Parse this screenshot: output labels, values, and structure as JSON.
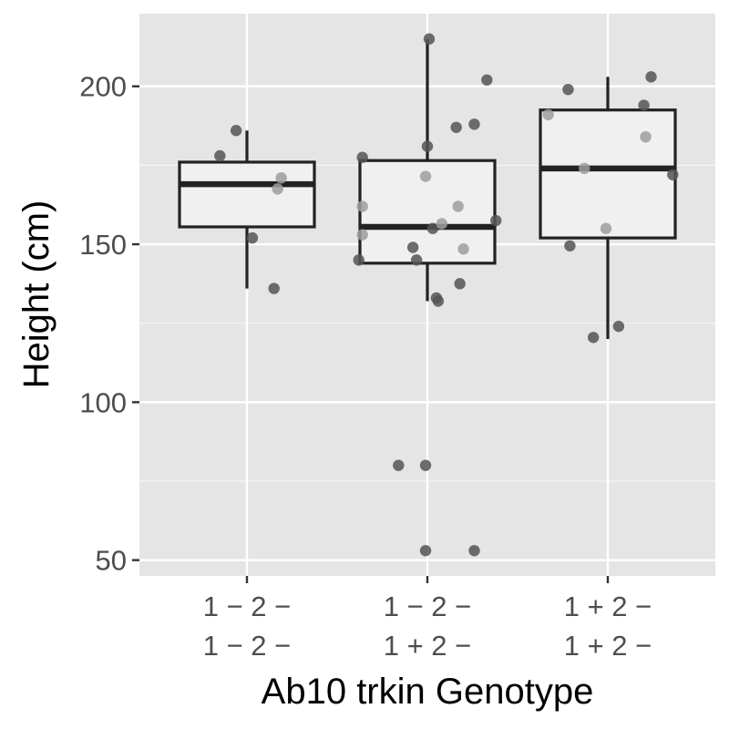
{
  "chart_data": {
    "type": "box",
    "xlabel": "Ab10 trkin Genotype",
    "ylabel": "Height (cm)",
    "ylim": [
      45,
      223
    ],
    "yticks": [
      50,
      100,
      150,
      200
    ],
    "grid": true,
    "colors": {
      "panel": "#e5e5e5",
      "grid_major": "#ffffff",
      "box_fill": "#f0f0f0",
      "box_stroke": "#222222",
      "point_dark": "#555555",
      "point_light": "#9e9e9e"
    },
    "categories": [
      {
        "line1": "1 − 2 −",
        "line2": "1 − 2 −"
      },
      {
        "line1": "1 − 2 −",
        "line2": "1 + 2 −"
      },
      {
        "line1": "1 + 2 −",
        "line2": "1 + 2 −"
      }
    ],
    "boxes": [
      {
        "min": 136,
        "q1": 155.5,
        "median": 169,
        "q3": 176,
        "max": 186
      },
      {
        "min": 132,
        "q1": 144,
        "median": 155.5,
        "q3": 176.5,
        "max": 215
      },
      {
        "min": 120,
        "q1": 152,
        "median": 174,
        "q3": 192.5,
        "max": 203
      }
    ],
    "points": [
      [
        {
          "x": 0.85,
          "y": 178,
          "shade": "dark"
        },
        {
          "x": 0.94,
          "y": 186,
          "shade": "dark"
        },
        {
          "x": 1.03,
          "y": 152,
          "shade": "dark"
        },
        {
          "x": 1.15,
          "y": 136,
          "shade": "dark"
        },
        {
          "x": 1.17,
          "y": 167.5,
          "shade": "light"
        },
        {
          "x": 1.19,
          "y": 171,
          "shade": "light"
        }
      ],
      [
        {
          "x": 1.62,
          "y": 145,
          "shade": "dark"
        },
        {
          "x": 1.64,
          "y": 153,
          "shade": "light"
        },
        {
          "x": 1.64,
          "y": 162,
          "shade": "light"
        },
        {
          "x": 1.64,
          "y": 177.5,
          "shade": "dark"
        },
        {
          "x": 1.84,
          "y": 80,
          "shade": "dark"
        },
        {
          "x": 1.92,
          "y": 149,
          "shade": "dark"
        },
        {
          "x": 1.94,
          "y": 145,
          "shade": "dark"
        },
        {
          "x": 1.99,
          "y": 53,
          "shade": "dark"
        },
        {
          "x": 1.99,
          "y": 80,
          "shade": "dark"
        },
        {
          "x": 1.99,
          "y": 171.5,
          "shade": "light"
        },
        {
          "x": 2.0,
          "y": 181,
          "shade": "dark"
        },
        {
          "x": 2.01,
          "y": 215,
          "shade": "dark"
        },
        {
          "x": 2.03,
          "y": 155,
          "shade": "dark"
        },
        {
          "x": 2.05,
          "y": 133,
          "shade": "dark"
        },
        {
          "x": 2.06,
          "y": 132,
          "shade": "dark"
        },
        {
          "x": 2.08,
          "y": 156.5,
          "shade": "light"
        },
        {
          "x": 2.16,
          "y": 187,
          "shade": "dark"
        },
        {
          "x": 2.17,
          "y": 162,
          "shade": "light"
        },
        {
          "x": 2.18,
          "y": 137.5,
          "shade": "dark"
        },
        {
          "x": 2.2,
          "y": 148.5,
          "shade": "light"
        },
        {
          "x": 2.26,
          "y": 53,
          "shade": "dark"
        },
        {
          "x": 2.26,
          "y": 188,
          "shade": "dark"
        },
        {
          "x": 2.33,
          "y": 202,
          "shade": "dark"
        },
        {
          "x": 2.38,
          "y": 157.5,
          "shade": "dark"
        }
      ],
      [
        {
          "x": 2.67,
          "y": 191,
          "shade": "light"
        },
        {
          "x": 2.78,
          "y": 199,
          "shade": "dark"
        },
        {
          "x": 2.79,
          "y": 149.5,
          "shade": "dark"
        },
        {
          "x": 2.87,
          "y": 174,
          "shade": "light"
        },
        {
          "x": 2.92,
          "y": 120.5,
          "shade": "dark"
        },
        {
          "x": 2.99,
          "y": 155,
          "shade": "light"
        },
        {
          "x": 3.06,
          "y": 124,
          "shade": "dark"
        },
        {
          "x": 3.2,
          "y": 194,
          "shade": "dark"
        },
        {
          "x": 3.21,
          "y": 184,
          "shade": "light"
        },
        {
          "x": 3.24,
          "y": 203,
          "shade": "dark"
        },
        {
          "x": 3.36,
          "y": 172,
          "shade": "dark"
        }
      ]
    ]
  }
}
